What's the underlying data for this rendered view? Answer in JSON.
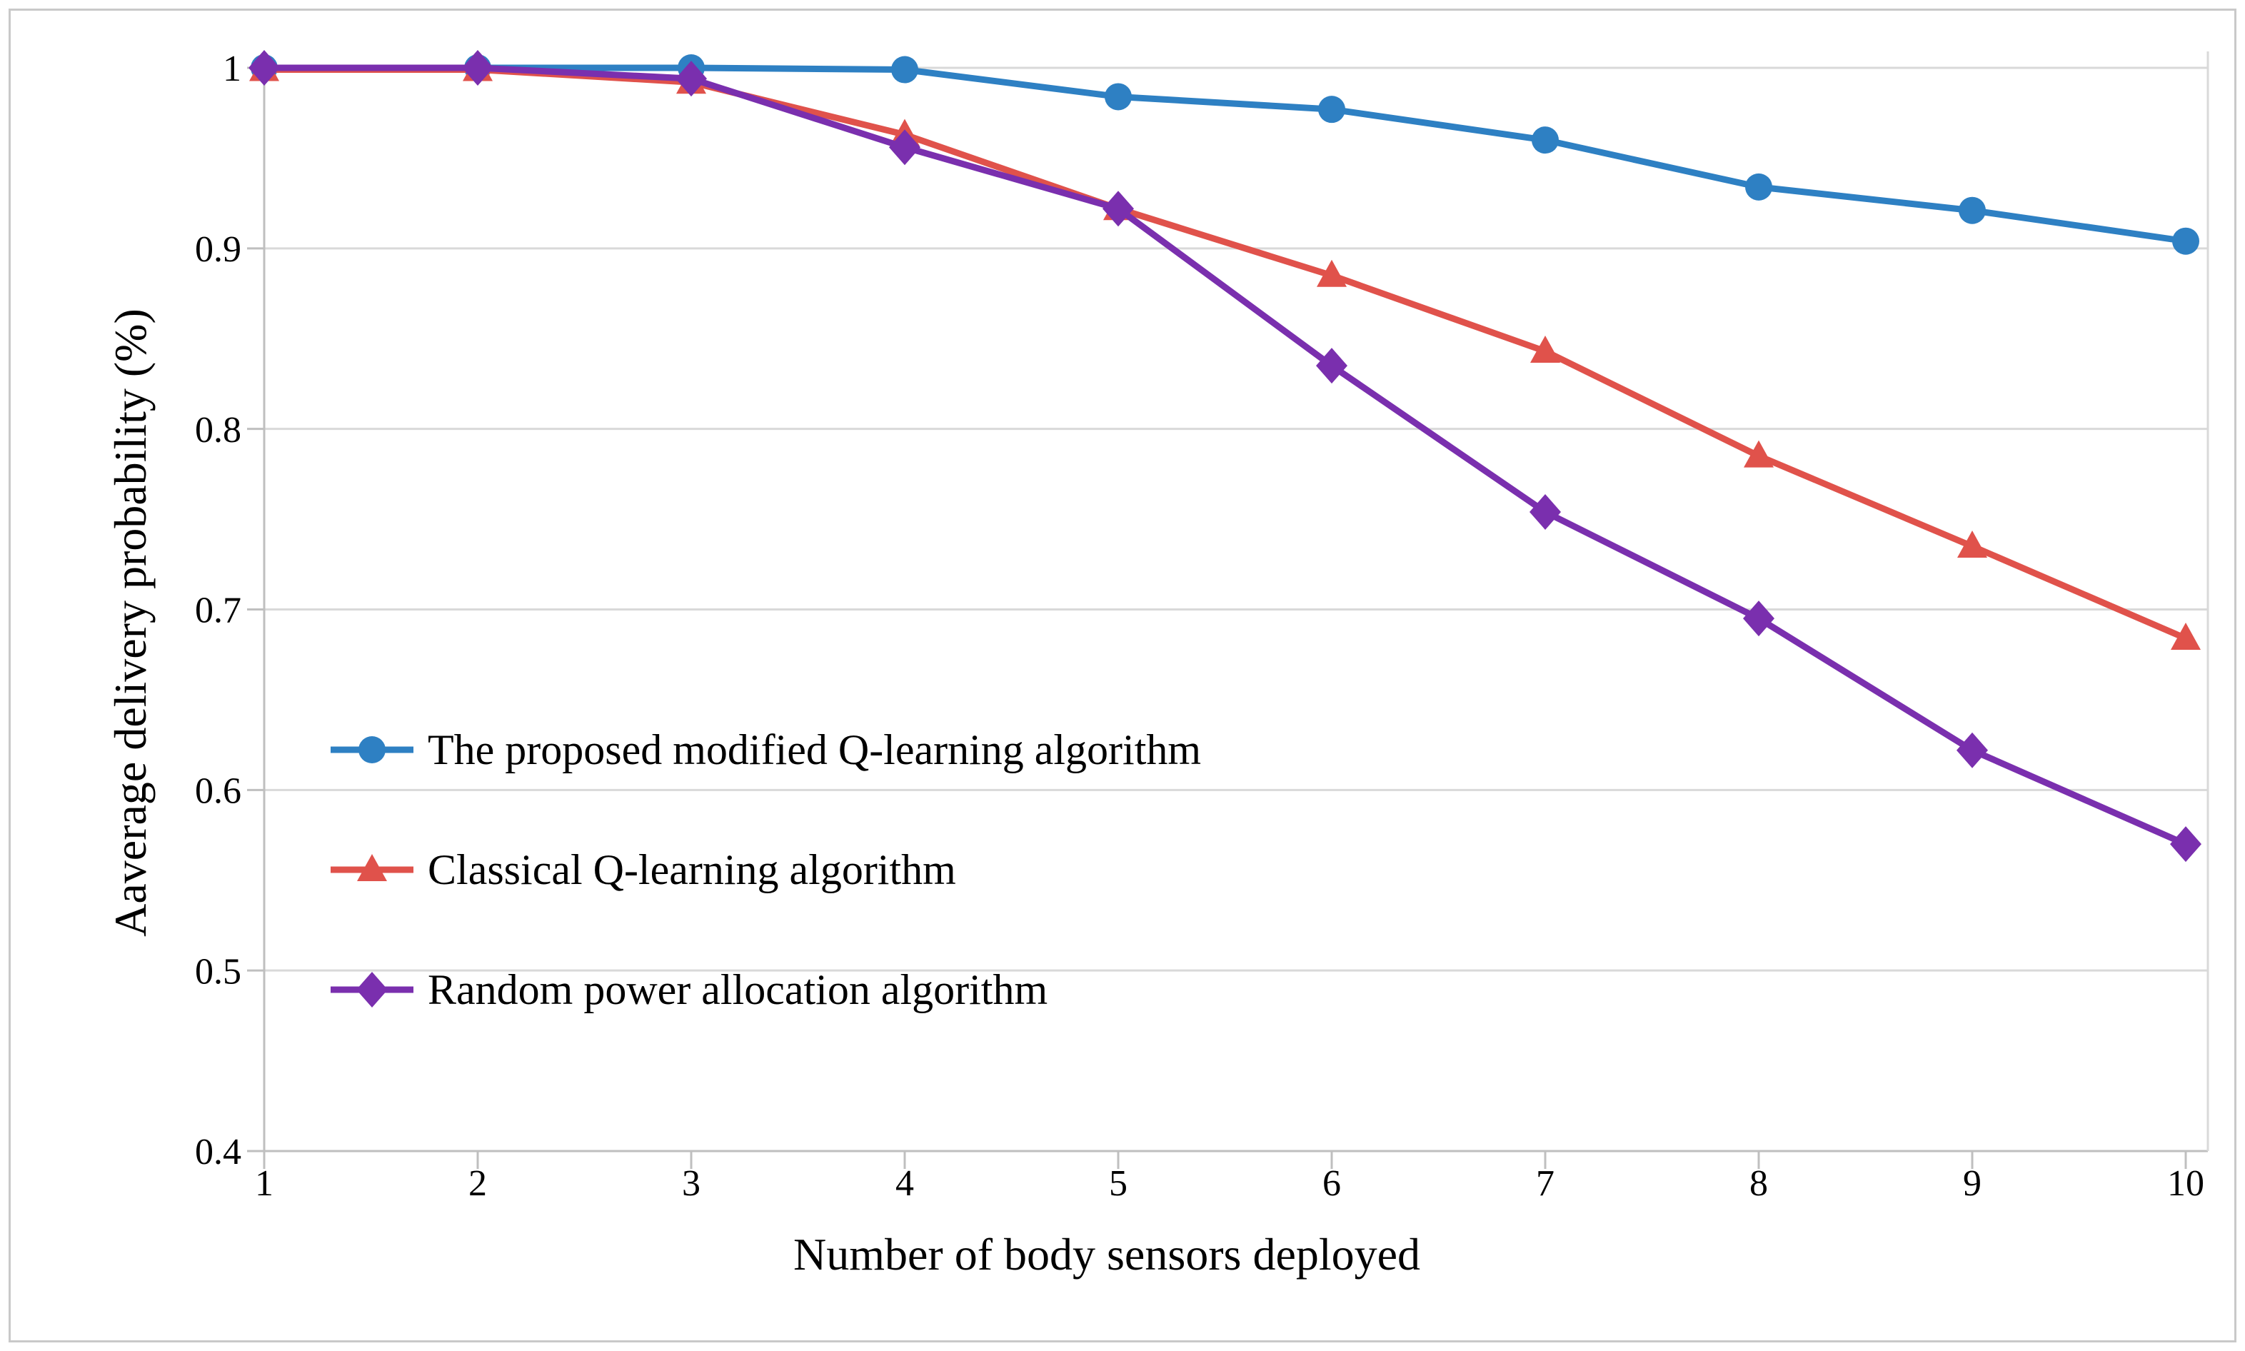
{
  "figure": {
    "background": "#ffffff",
    "border_color": "#c9c9c9"
  },
  "chart_data": {
    "type": "line",
    "title": "",
    "xlabel": "Number of body sensors deployed",
    "ylabel": "Aaverage delivery probability (%)",
    "x": [
      1,
      2,
      3,
      4,
      5,
      6,
      7,
      8,
      9,
      10
    ],
    "x_tick_labels": [
      "1",
      "2",
      "3",
      "4",
      "5",
      "6",
      "7",
      "8",
      "9",
      "10"
    ],
    "y_tick_labels": [
      "1",
      "0.9",
      "0.8",
      "0.7",
      "0.6",
      "0.5",
      "0.4"
    ],
    "y_tick_values": [
      1.0,
      0.9,
      0.8,
      0.7,
      0.6,
      0.5,
      0.4
    ],
    "xlim": [
      1,
      10
    ],
    "ylim": [
      0.4,
      1.0
    ],
    "grid": "horizontal",
    "legend_position": "inside-left-middle",
    "colors": {
      "grid": "#d9d9d9",
      "axis": "#bfbfbf",
      "text": "#000000"
    },
    "series": [
      {
        "id": "proposed-modified-q-learning",
        "name": "The proposed modified Q-learning algorithm",
        "color": "#2e80c3",
        "marker": "circle",
        "values": [
          1.0,
          1.0,
          1.0,
          0.999,
          0.984,
          0.977,
          0.96,
          0.934,
          0.921,
          0.904
        ]
      },
      {
        "id": "classical-q-learning",
        "name": "Classical Q-learning algorithm",
        "color": "#e0524b",
        "marker": "triangle",
        "values": [
          0.999,
          0.999,
          0.992,
          0.963,
          0.922,
          0.885,
          0.843,
          0.785,
          0.735,
          0.684
        ]
      },
      {
        "id": "random-power-allocation",
        "name": "Random power allocation algorithm",
        "color": "#7a2fae",
        "marker": "diamond",
        "values": [
          1.0,
          1.0,
          0.994,
          0.956,
          0.922,
          0.835,
          0.754,
          0.695,
          0.622,
          0.57
        ]
      }
    ]
  }
}
